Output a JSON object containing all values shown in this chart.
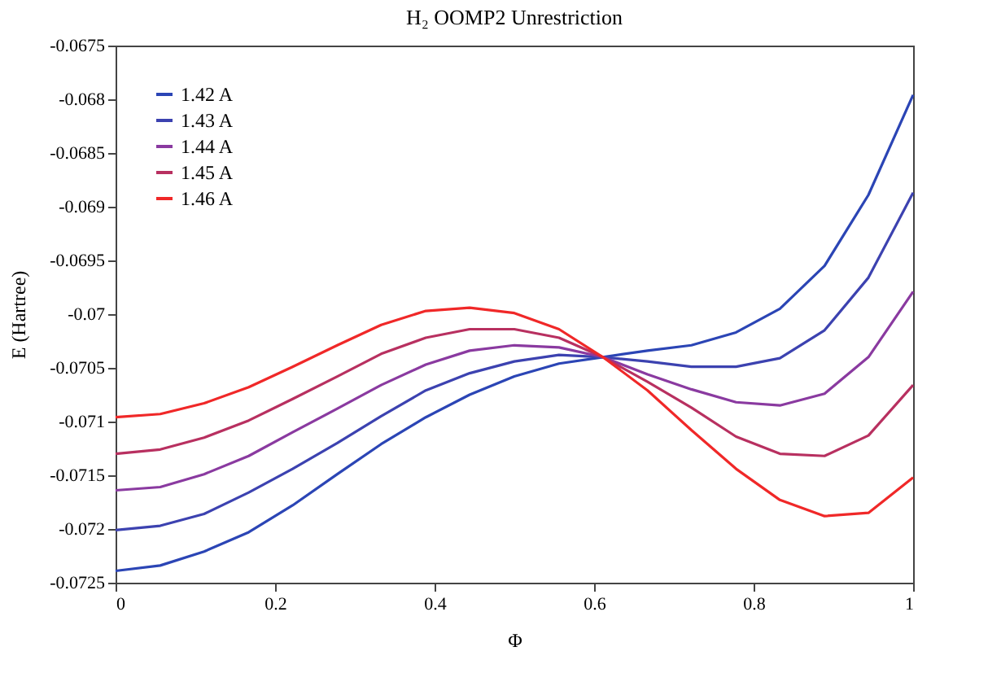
{
  "chart_data": {
    "type": "line",
    "title": "H₂ OOMP2 Unrestriction",
    "xlabel": "Φ",
    "ylabel": "E (Hartree)",
    "x": [
      0,
      0.056,
      0.111,
      0.167,
      0.222,
      0.278,
      0.333,
      0.389,
      0.444,
      0.5,
      0.556,
      0.611,
      0.667,
      0.722,
      0.778,
      0.833,
      0.889,
      0.944,
      1
    ],
    "series": [
      {
        "name": "1.42 A",
        "color": "#2b45b5",
        "values": [
          -0.07239,
          -0.07234,
          -0.07221,
          -0.07203,
          -0.07178,
          -0.07149,
          -0.07121,
          -0.07096,
          -0.07075,
          -0.07058,
          -0.07046,
          -0.0704,
          -0.07034,
          -0.07029,
          -0.07017,
          -0.06995,
          -0.06955,
          -0.06889,
          -0.06796
        ]
      },
      {
        "name": "1.43 A",
        "color": "#3c42b0",
        "values": [
          -0.07201,
          -0.07197,
          -0.07186,
          -0.07166,
          -0.07144,
          -0.0712,
          -0.07095,
          -0.07071,
          -0.07055,
          -0.07044,
          -0.07038,
          -0.0704,
          -0.07044,
          -0.07049,
          -0.07049,
          -0.07041,
          -0.07015,
          -0.06966,
          -0.06887
        ]
      },
      {
        "name": "1.44 A",
        "color": "#8a3aa0",
        "values": [
          -0.07164,
          -0.07161,
          -0.07149,
          -0.07132,
          -0.0711,
          -0.07088,
          -0.07066,
          -0.07047,
          -0.07034,
          -0.07029,
          -0.07031,
          -0.0704,
          -0.07056,
          -0.0707,
          -0.07082,
          -0.07085,
          -0.07074,
          -0.0704,
          -0.06979
        ]
      },
      {
        "name": "1.45 A",
        "color": "#b83060",
        "values": [
          -0.0713,
          -0.07126,
          -0.07115,
          -0.07099,
          -0.07079,
          -0.07058,
          -0.07037,
          -0.07022,
          -0.07014,
          -0.07014,
          -0.07022,
          -0.0704,
          -0.07063,
          -0.07087,
          -0.07114,
          -0.0713,
          -0.07132,
          -0.07113,
          -0.07066
        ]
      },
      {
        "name": "1.46 A",
        "color": "#f02828",
        "values": [
          -0.07096,
          -0.07093,
          -0.07083,
          -0.07068,
          -0.07049,
          -0.07029,
          -0.0701,
          -0.06997,
          -0.06994,
          -0.06999,
          -0.07014,
          -0.0704,
          -0.07071,
          -0.07108,
          -0.07144,
          -0.07173,
          -0.07188,
          -0.07185,
          -0.07152
        ]
      }
    ],
    "xlim": [
      0,
      1
    ],
    "xticks": [
      0,
      0.2,
      0.4,
      0.6,
      0.8,
      1
    ],
    "ylim": [
      -0.0725,
      -0.0675
    ],
    "yticks": [
      -0.0725,
      -0.072,
      -0.0715,
      -0.071,
      -0.0705,
      -0.07,
      -0.0695,
      -0.069,
      -0.0685,
      -0.068,
      -0.0675
    ],
    "legend": "top left",
    "grid": false,
    "marker": "none",
    "line_style": "solid"
  }
}
